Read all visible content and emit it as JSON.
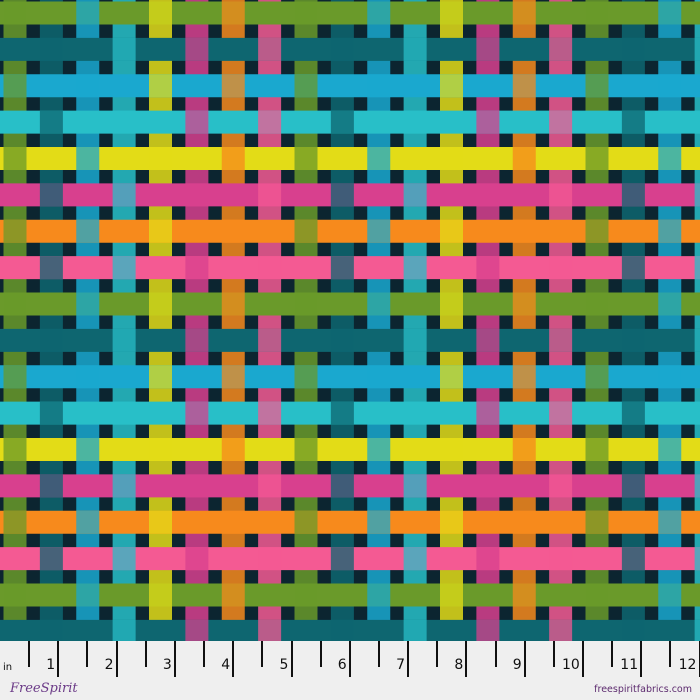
{
  "fabric": {
    "background": "#0c2530",
    "palette": [
      "#6a9a2a",
      "#0e6670",
      "#1aa8cf",
      "#28bfc8",
      "#e3dc17",
      "#d8408e",
      "#f78a1c",
      "#f45a93"
    ],
    "palette_names": [
      "green",
      "dark-teal",
      "blue",
      "turquoise",
      "yellow",
      "magenta",
      "orange",
      "pink"
    ]
  },
  "ruler": {
    "unit": "in",
    "labels": [
      "1",
      "2",
      "3",
      "4",
      "5",
      "6",
      "7",
      "8",
      "9",
      "10",
      "11",
      "12"
    ]
  },
  "branding": {
    "logo": "FreeSpirit",
    "url": "freespiritfabrics.com"
  }
}
